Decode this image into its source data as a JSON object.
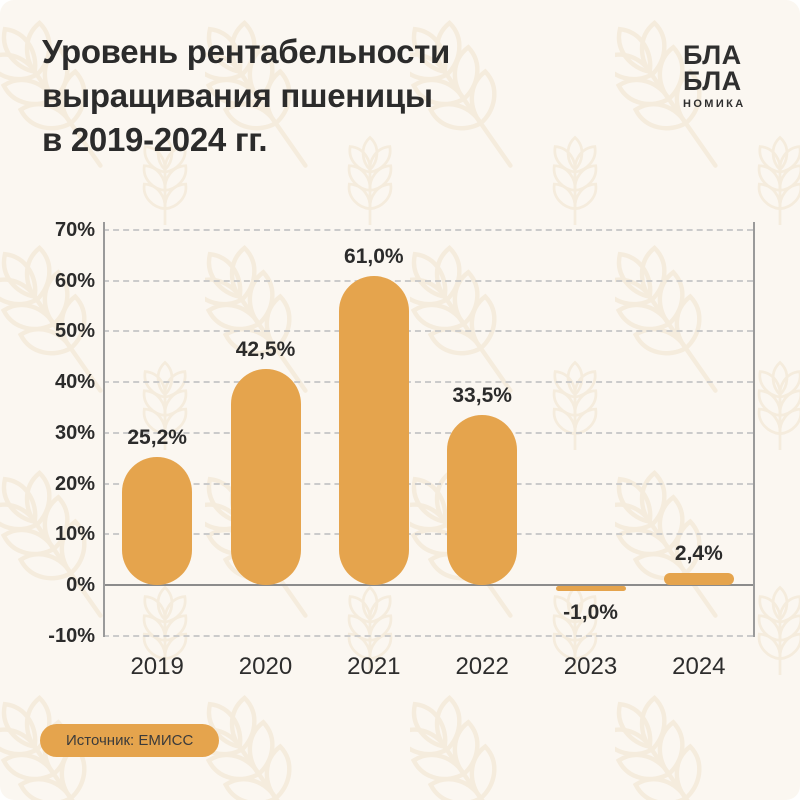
{
  "header": {
    "title_lines": [
      "Уровень рентабельности",
      "выращивания пшеницы",
      "в 2019-2024 гг."
    ],
    "logo": {
      "line1": "БЛА",
      "line2": "БЛА",
      "line3": "НОМИКА"
    }
  },
  "chart_data": {
    "type": "bar",
    "title": "Уровень рентабельности выращивания пшеницы в 2019-2024 гг.",
    "categories": [
      "2019",
      "2020",
      "2021",
      "2022",
      "2023",
      "2024"
    ],
    "values": [
      25.2,
      42.5,
      61.0,
      33.5,
      -1.0,
      2.4
    ],
    "value_labels": [
      "25,2%",
      "42,5%",
      "61,0%",
      "33,5%",
      "-1,0%",
      "2,4%"
    ],
    "xlabel": "",
    "ylabel": "",
    "ylim": [
      -10,
      70
    ],
    "y_ticks": [
      70,
      60,
      50,
      40,
      30,
      20,
      10,
      0,
      -10
    ],
    "y_tick_labels": [
      "70%",
      "60%",
      "50%",
      "40%",
      "30%",
      "20%",
      "10%",
      "0%",
      "-10%"
    ],
    "grid": "horizontal dashed, solid zero baseline",
    "legend": "none",
    "bar_color": "#E5A44D"
  },
  "footer": {
    "source_label": "Источник: ЕМИСС"
  },
  "colors": {
    "background": "#FBF7F1",
    "accent": "#E5A44D",
    "text": "#2B2B2B",
    "gridline": "#CBCBCB",
    "zero_line": "#8C8C8C",
    "watermark": "#F2E6D2"
  }
}
